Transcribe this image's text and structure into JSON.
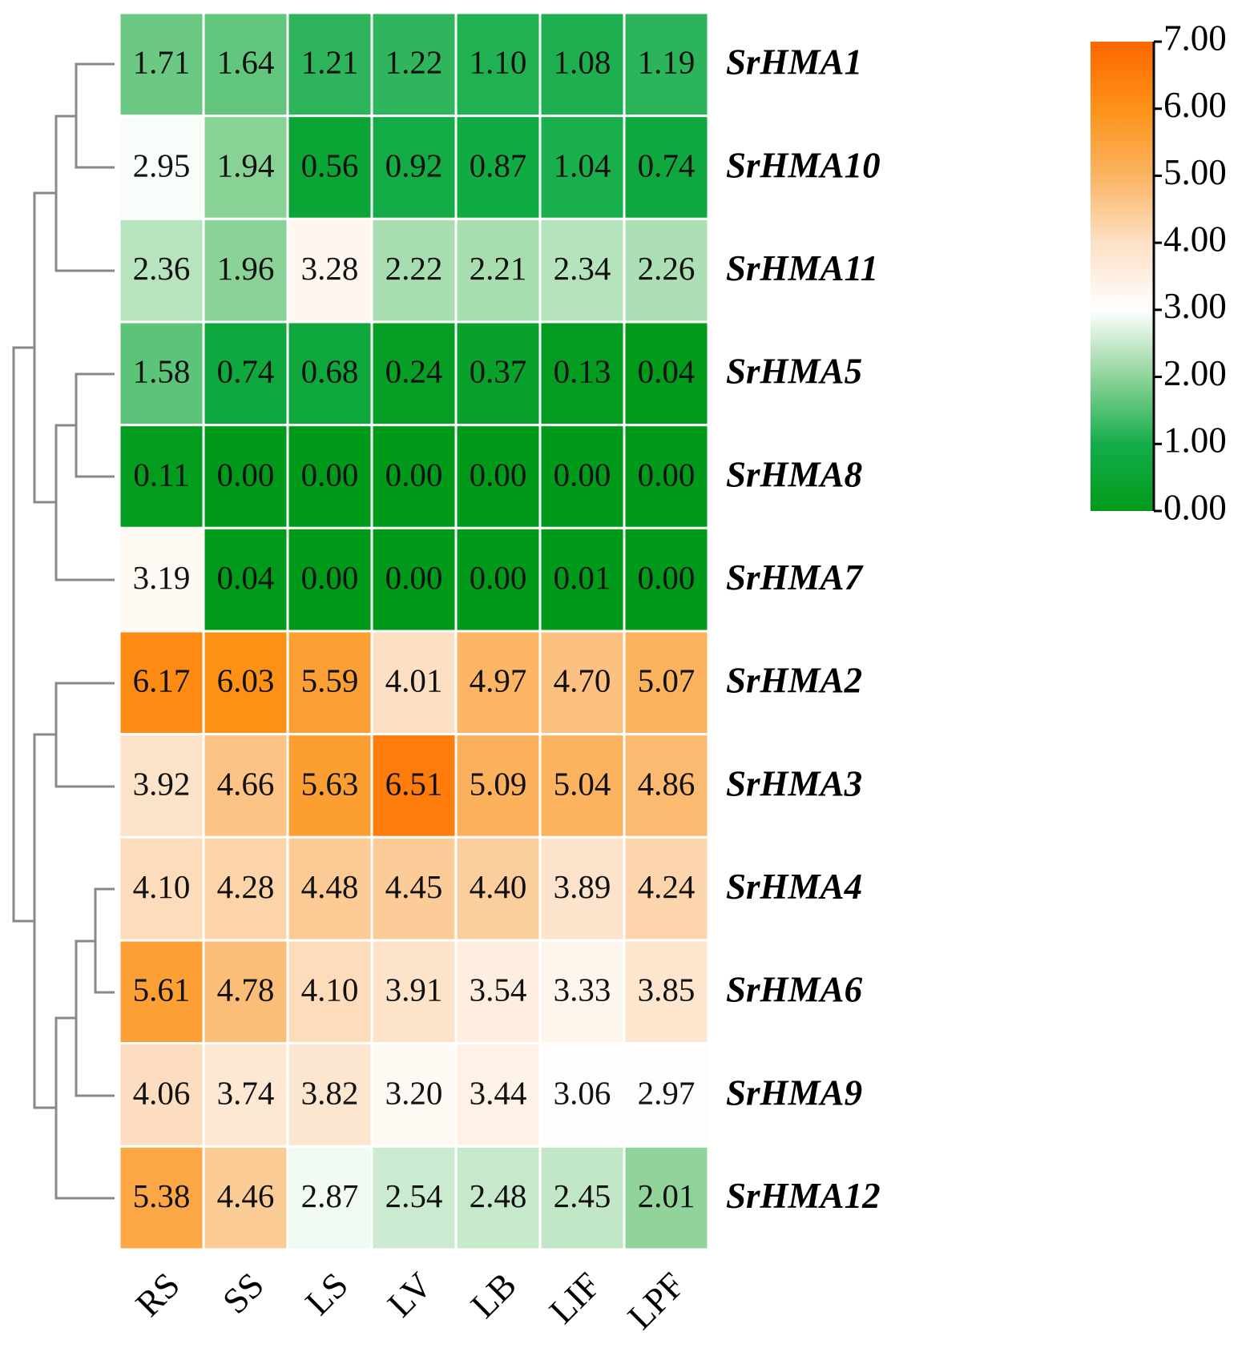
{
  "chart_data": {
    "type": "heatmap",
    "x": [
      "RS",
      "SS",
      "LS",
      "LV",
      "LB",
      "LIF",
      "LPF"
    ],
    "y": [
      "SrHMA1",
      "SrHMA10",
      "SrHMA11",
      "SrHMA5",
      "SrHMA8",
      "SrHMA7",
      "SrHMA2",
      "SrHMA3",
      "SrHMA4",
      "SrHMA6",
      "SrHMA9",
      "SrHMA12"
    ],
    "values": [
      [
        1.71,
        1.64,
        1.21,
        1.22,
        1.1,
        1.08,
        1.19
      ],
      [
        2.95,
        1.94,
        0.56,
        0.92,
        0.87,
        1.04,
        0.74
      ],
      [
        2.36,
        1.96,
        3.28,
        2.22,
        2.21,
        2.34,
        2.26
      ],
      [
        1.58,
        0.74,
        0.68,
        0.24,
        0.37,
        0.13,
        0.04
      ],
      [
        0.11,
        0,
        0,
        0,
        0,
        0,
        0
      ],
      [
        3.19,
        0.04,
        0,
        0,
        0,
        0.01,
        0
      ],
      [
        6.17,
        6.03,
        5.59,
        4.01,
        4.97,
        4.7,
        5.07
      ],
      [
        3.92,
        4.66,
        5.63,
        6.51,
        5.09,
        5.04,
        4.86
      ],
      [
        4.1,
        4.28,
        4.48,
        4.45,
        4.4,
        3.89,
        4.24
      ],
      [
        5.61,
        4.78,
        4.1,
        3.91,
        3.54,
        3.33,
        3.85
      ],
      [
        4.06,
        3.74,
        3.82,
        3.2,
        3.44,
        3.06,
        2.97
      ],
      [
        5.38,
        4.46,
        2.87,
        2.54,
        2.48,
        2.45,
        2.01
      ]
    ],
    "value_labels": [
      [
        "1.71",
        "1.64",
        "1.21",
        "1.22",
        "1.10",
        "1.08",
        "1.19"
      ],
      [
        "2.95",
        "1.94",
        "0.56",
        "0.92",
        "0.87",
        "1.04",
        "0.74"
      ],
      [
        "2.36",
        "1.96",
        "3.28",
        "2.22",
        "2.21",
        "2.34",
        "2.26"
      ],
      [
        "1.58",
        "0.74",
        "0.68",
        "0.24",
        "0.37",
        "0.13",
        "0.04"
      ],
      [
        "0.11",
        "0.00",
        "0.00",
        "0.00",
        "0.00",
        "0.00",
        "0.00"
      ],
      [
        "3.19",
        "0.04",
        "0.00",
        "0.00",
        "0.00",
        "0.01",
        "0.00"
      ],
      [
        "6.17",
        "6.03",
        "5.59",
        "4.01",
        "4.97",
        "4.70",
        "5.07"
      ],
      [
        "3.92",
        "4.66",
        "5.63",
        "6.51",
        "5.09",
        "5.04",
        "4.86"
      ],
      [
        "4.10",
        "4.28",
        "4.48",
        "4.45",
        "4.40",
        "3.89",
        "4.24"
      ],
      [
        "5.61",
        "4.78",
        "4.10",
        "3.91",
        "3.54",
        "3.33",
        "3.85"
      ],
      [
        "4.06",
        "3.74",
        "3.82",
        "3.20",
        "3.44",
        "3.06",
        "2.97"
      ],
      [
        "5.38",
        "4.46",
        "2.87",
        "2.54",
        "2.48",
        "2.45",
        "2.01"
      ]
    ],
    "clim": [
      0,
      7
    ],
    "cticks": [
      {
        "value": 0,
        "label": "0.00"
      },
      {
        "value": 1,
        "label": "1.00"
      },
      {
        "value": 2,
        "label": "2.00"
      },
      {
        "value": 3,
        "label": "3.00"
      },
      {
        "value": 4,
        "label": "4.00"
      },
      {
        "value": 5,
        "label": "5.00"
      },
      {
        "value": 6,
        "label": "6.00"
      },
      {
        "value": 7,
        "label": "7.00"
      }
    ],
    "colors": [
      "#009a1a",
      "#14ad4a",
      "#8fd49a",
      "#ffffff",
      "#fde0c5",
      "#fbb462",
      "#fd9217",
      "#ff6600"
    ]
  }
}
